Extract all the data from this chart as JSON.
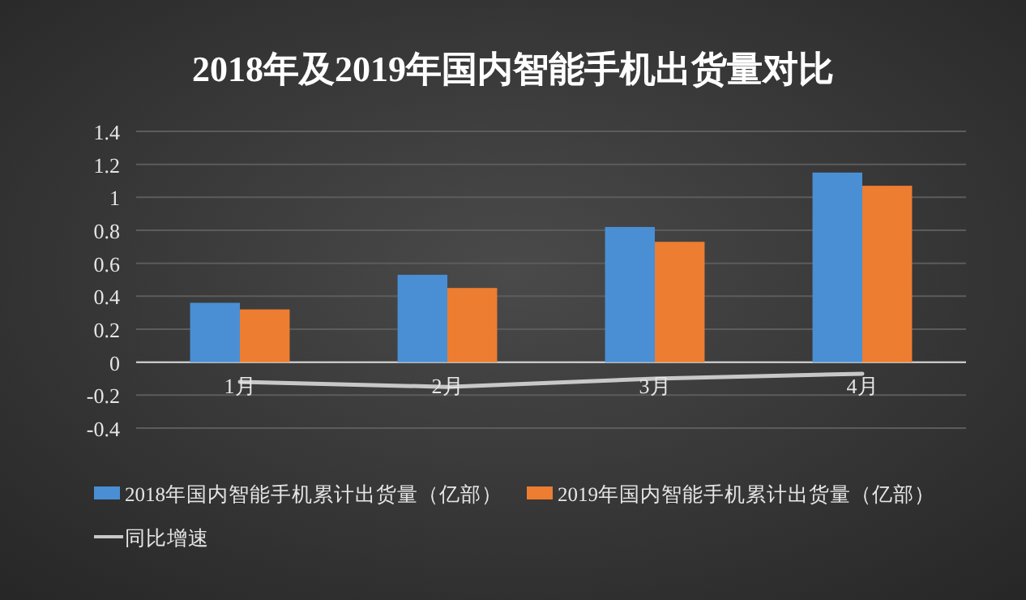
{
  "chart_data": {
    "type": "bar",
    "title": "2018年及2019年国内智能手机出货量对比",
    "categories": [
      "1月",
      "2月",
      "3月",
      "4月"
    ],
    "series": [
      {
        "name": "2018年国内智能手机累计出货量（亿部）",
        "color": "#4a8fd4",
        "values": [
          0.36,
          0.53,
          0.82,
          1.15
        ]
      },
      {
        "name": "2019年国内智能手机累计出货量（亿部）",
        "color": "#ed7d31",
        "values": [
          0.32,
          0.45,
          0.73,
          1.07
        ]
      },
      {
        "name": "同比增速",
        "type": "line",
        "color": "#c8c8c8",
        "values": [
          -0.12,
          -0.15,
          -0.1,
          -0.07
        ]
      }
    ],
    "ylim": [
      -0.4,
      1.4
    ],
    "yticks": [
      -0.4,
      -0.2,
      0,
      0.2,
      0.4,
      0.6,
      0.8,
      1,
      1.2,
      1.4
    ],
    "grid": "y",
    "legend": "bottom",
    "marker": "none",
    "line_style": "solid"
  }
}
